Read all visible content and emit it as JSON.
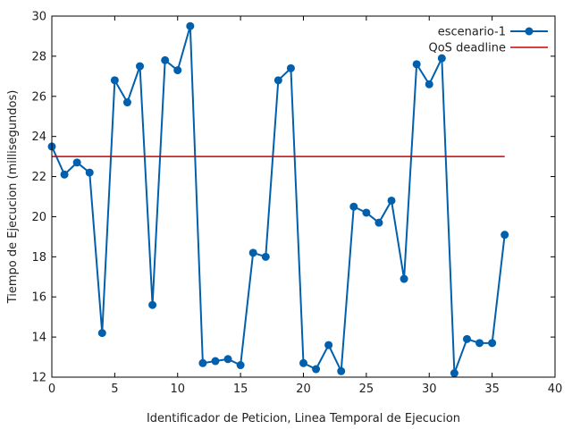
{
  "chart_data": {
    "type": "line",
    "title": "",
    "xlabel": "Identificador de Peticion, Linea Temporal de Ejecucion",
    "ylabel": "Tiempo de Ejecucion (millisegundos)",
    "xlim": [
      0,
      40
    ],
    "ylim": [
      12,
      30
    ],
    "xticks": [
      0,
      5,
      10,
      15,
      20,
      25,
      30,
      35,
      40
    ],
    "yticks": [
      12,
      14,
      16,
      18,
      20,
      22,
      24,
      26,
      28,
      30
    ],
    "grid": false,
    "legend_position": "top-right",
    "series": [
      {
        "name": "escenario-1",
        "color": "#0060ad",
        "marker": "circle",
        "x": [
          0,
          1,
          2,
          3,
          4,
          5,
          6,
          7,
          8,
          9,
          10,
          11,
          12,
          13,
          14,
          15,
          16,
          17,
          18,
          19,
          20,
          21,
          22,
          23,
          24,
          25,
          26,
          27,
          28,
          29,
          30,
          31,
          32,
          33,
          34,
          35,
          36
        ],
        "y": [
          23.5,
          22.1,
          22.7,
          22.2,
          14.2,
          26.8,
          25.7,
          27.5,
          15.6,
          27.8,
          27.3,
          29.5,
          12.7,
          12.8,
          12.9,
          12.6,
          18.2,
          18.0,
          26.8,
          27.4,
          12.7,
          12.4,
          13.6,
          12.3,
          20.5,
          20.2,
          19.7,
          20.8,
          16.9,
          27.6,
          26.6,
          27.9,
          12.2,
          13.9,
          13.7,
          13.7,
          19.1
        ]
      },
      {
        "name": "QoS deadline",
        "color": "#cc0000",
        "marker": "none",
        "x": [
          0,
          36
        ],
        "y": [
          23,
          23
        ]
      }
    ]
  }
}
